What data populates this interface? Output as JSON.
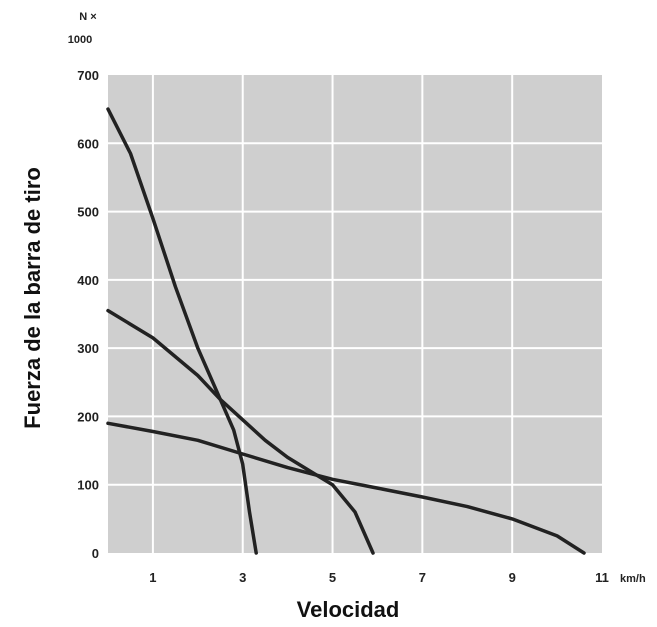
{
  "chart_data": {
    "type": "line",
    "xlabel": "Velocidad",
    "ylabel": "Fuerza de la barra de tiro",
    "x_unit": "km/h",
    "y_unit_line1": "N ×",
    "y_unit_line2": "1000",
    "xlim": [
      0,
      11
    ],
    "ylim": [
      0,
      700
    ],
    "x_ticks": [
      1,
      3,
      5,
      7,
      9,
      11
    ],
    "y_ticks": [
      0,
      100,
      200,
      300,
      400,
      500,
      600,
      700
    ],
    "grid": true,
    "plot_background": "#cfcfcf",
    "grid_color": "#ffffff",
    "line_color": "#222222",
    "series": [
      {
        "points": [
          [
            0,
            650
          ],
          [
            0.5,
            585
          ],
          [
            1,
            490
          ],
          [
            1.5,
            390
          ],
          [
            2,
            300
          ],
          [
            2.5,
            225
          ],
          [
            2.8,
            180
          ],
          [
            3.0,
            130
          ],
          [
            3.15,
            60
          ],
          [
            3.3,
            0
          ]
        ]
      },
      {
        "points": [
          [
            0,
            355
          ],
          [
            1,
            315
          ],
          [
            2,
            260
          ],
          [
            2.5,
            225
          ],
          [
            3,
            195
          ],
          [
            3.5,
            165
          ],
          [
            4,
            140
          ],
          [
            4.5,
            120
          ],
          [
            5,
            100
          ],
          [
            5.5,
            60
          ],
          [
            5.9,
            0
          ]
        ]
      },
      {
        "points": [
          [
            0,
            190
          ],
          [
            1,
            178
          ],
          [
            2,
            165
          ],
          [
            3,
            145
          ],
          [
            4,
            125
          ],
          [
            5,
            108
          ],
          [
            6,
            95
          ],
          [
            7,
            82
          ],
          [
            8,
            68
          ],
          [
            9,
            50
          ],
          [
            10,
            25
          ],
          [
            10.6,
            0
          ]
        ]
      }
    ]
  }
}
